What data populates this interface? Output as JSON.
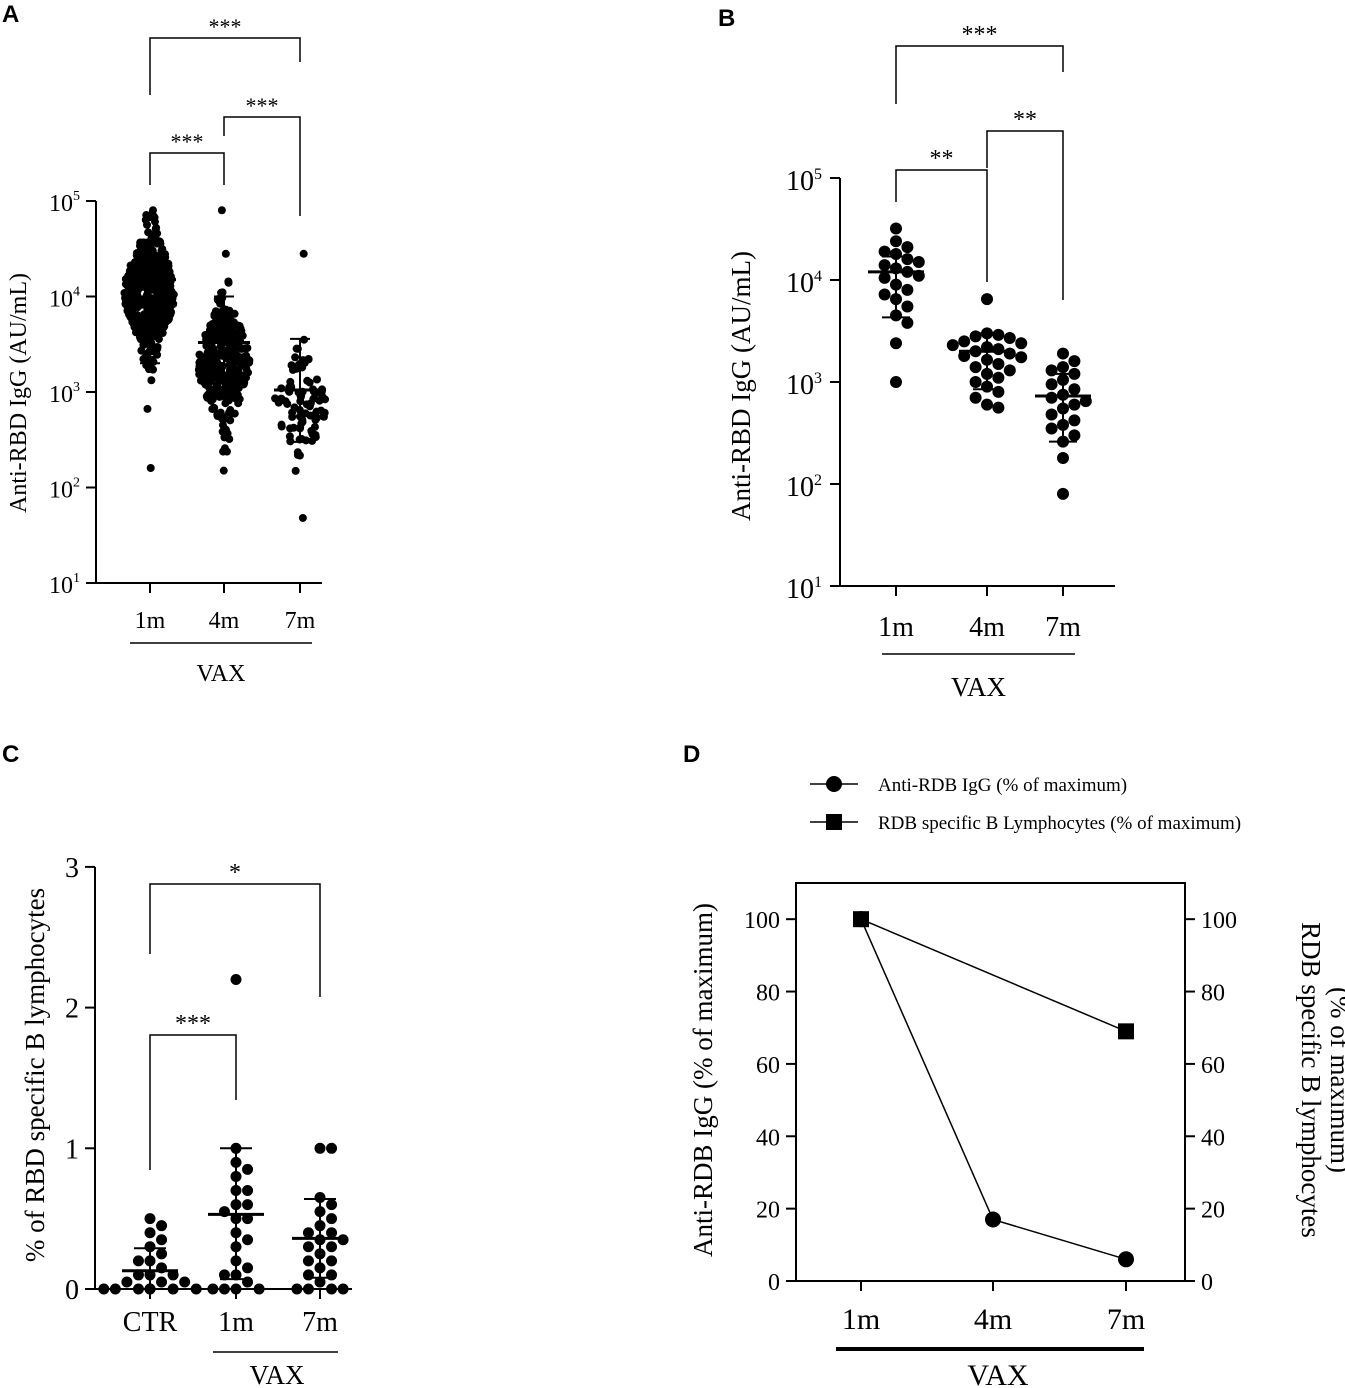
{
  "chart_data": [
    {
      "panel": "A",
      "type": "scatter",
      "title": "",
      "ylabel": "Anti-RBD IgG (AU/mL)",
      "yscale": "log",
      "ylim": [
        10,
        100000
      ],
      "ytick_labels": [
        {
          "base": "10",
          "exp": "1"
        },
        {
          "base": "10",
          "exp": "2"
        },
        {
          "base": "10",
          "exp": "3"
        },
        {
          "base": "10",
          "exp": "4"
        },
        {
          "base": "10",
          "exp": "5"
        }
      ],
      "categories": [
        "1m",
        "4m",
        "7m"
      ],
      "group_label": "VAX",
      "summary": [
        {
          "category": "1m",
          "mean": 15000,
          "sd_low": 2000,
          "sd_high": 14000
        },
        {
          "category": "4m",
          "mean": 3300,
          "sd_low": 1100,
          "sd_high": 10000
        },
        {
          "category": "7m",
          "mean": 1050,
          "sd_low": 300,
          "sd_high": 3600
        }
      ],
      "points": {
        "1m": {
          "n": 430,
          "center": 11000,
          "spread_decades": 0.35,
          "min": 160,
          "max": 80000
        },
        "4m": {
          "n": 300,
          "center": 2000,
          "spread_decades": 0.35,
          "min": 150,
          "max": 80000
        },
        "7m": {
          "n": 90,
          "center": 700,
          "spread_decades": 0.3,
          "min": 48,
          "max": 28000
        }
      },
      "comparisons": [
        {
          "from": "1m",
          "to": "7m",
          "label": "***"
        },
        {
          "from": "4m",
          "to": "7m",
          "label": "***"
        },
        {
          "from": "1m",
          "to": "4m",
          "label": "***"
        }
      ]
    },
    {
      "panel": "B",
      "type": "scatter",
      "title": "",
      "ylabel": "Anti-RBD IgG (AU/mL)",
      "yscale": "log",
      "ylim": [
        10,
        100000
      ],
      "ytick_labels": [
        {
          "base": "10",
          "exp": "1"
        },
        {
          "base": "10",
          "exp": "2"
        },
        {
          "base": "10",
          "exp": "3"
        },
        {
          "base": "10",
          "exp": "4"
        },
        {
          "base": "10",
          "exp": "5"
        }
      ],
      "categories": [
        "1m",
        "4m",
        "7m"
      ],
      "group_label": "VAX",
      "summary": [
        {
          "category": "1m",
          "mean": 12000,
          "sd_low": 4300,
          "sd_high": 17000
        },
        {
          "category": "4m",
          "mean": 2000,
          "sd_low": 850,
          "sd_high": 3000
        },
        {
          "category": "7m",
          "mean": 730,
          "sd_low": 260,
          "sd_high": 1200
        }
      ],
      "points": {
        "1m": [
          32000,
          24000,
          21000,
          19000,
          18000,
          16000,
          15000,
          14000,
          13000,
          12000,
          11000,
          10500,
          9000,
          8000,
          7200,
          6500,
          5500,
          4500,
          3800,
          2400,
          1000
        ],
        "4m": [
          6500,
          3000,
          2900,
          2800,
          2700,
          2500,
          2400,
          2300,
          2200,
          2100,
          2000,
          1900,
          1800,
          1750,
          1650,
          1500,
          1400,
          1300,
          1200,
          1100,
          1000,
          900,
          800,
          700,
          600,
          560
        ],
        "7m": [
          1900,
          1600,
          1400,
          1300,
          1200,
          1050,
          950,
          850,
          750,
          700,
          650,
          600,
          550,
          480,
          420,
          380,
          350,
          300,
          260,
          180,
          80
        ]
      },
      "comparisons": [
        {
          "from": "1m",
          "to": "7m",
          "label": "***"
        },
        {
          "from": "4m",
          "to": "7m",
          "label": "**"
        },
        {
          "from": "1m",
          "to": "4m",
          "label": "**"
        }
      ]
    },
    {
      "panel": "C",
      "type": "scatter",
      "title": "",
      "ylabel": "% of RBD specific B lymphocytes",
      "yscale": "linear",
      "ylim": [
        0,
        3
      ],
      "yticks": [
        0,
        1,
        2,
        3
      ],
      "categories": [
        "CTR",
        "1m",
        "7m"
      ],
      "group_label": "VAX",
      "group_categories": [
        "1m",
        "7m"
      ],
      "summary": [
        {
          "category": "CTR",
          "mean": 0.13,
          "sd_low": 0.0,
          "sd_high": 0.29
        },
        {
          "category": "1m",
          "mean": 0.53,
          "sd_low": 0.07,
          "sd_high": 1.0
        },
        {
          "category": "7m",
          "mean": 0.36,
          "sd_low": 0.08,
          "sd_high": 0.64
        }
      ],
      "points": {
        "CTR": [
          0.5,
          0.45,
          0.4,
          0.35,
          0.3,
          0.25,
          0.2,
          0.2,
          0.15,
          0.1,
          0.1,
          0.1,
          0.05,
          0.05,
          0.05,
          0.0,
          0.0,
          0.0,
          0.0,
          0.0,
          0.0,
          0.0
        ],
        "1m": [
          2.2,
          1.0,
          0.9,
          0.85,
          0.8,
          0.7,
          0.7,
          0.6,
          0.6,
          0.55,
          0.5,
          0.5,
          0.4,
          0.35,
          0.3,
          0.2,
          0.15,
          0.1,
          0.1,
          0.05,
          0.0,
          0.0,
          0.0,
          0.0
        ],
        "7m": [
          1.0,
          1.0,
          0.65,
          0.6,
          0.55,
          0.5,
          0.45,
          0.4,
          0.4,
          0.35,
          0.35,
          0.3,
          0.3,
          0.25,
          0.2,
          0.2,
          0.15,
          0.1,
          0.1,
          0.05,
          0.0,
          0.0,
          0.0,
          0.0
        ]
      },
      "comparisons": [
        {
          "from": "CTR",
          "to": "7m",
          "label": "*"
        },
        {
          "from": "CTR",
          "to": "1m",
          "label": "***"
        }
      ]
    },
    {
      "panel": "D",
      "type": "line",
      "title": "",
      "ylabel": "Anti-RDB IgG (% of maximum)",
      "y2label": [
        "RDB specific B lymphocytes",
        "(% of maximum)"
      ],
      "ylim": [
        0,
        110
      ],
      "y2lim": [
        0,
        110
      ],
      "yticks": [
        0,
        20,
        40,
        60,
        80,
        100
      ],
      "categories": [
        "1m",
        "4m",
        "7m"
      ],
      "group_label": "VAX",
      "legend_placement": "top",
      "series": [
        {
          "name": "Anti-RDB IgG (% of maximum)",
          "marker": "circle",
          "x": [
            "1m",
            "4m",
            "7m"
          ],
          "values": [
            100,
            17,
            6
          ]
        },
        {
          "name": "RDB specific B Lymphocytes (% of maximum)",
          "marker": "square",
          "x": [
            "1m",
            "7m"
          ],
          "values": [
            100,
            69
          ]
        }
      ]
    }
  ]
}
